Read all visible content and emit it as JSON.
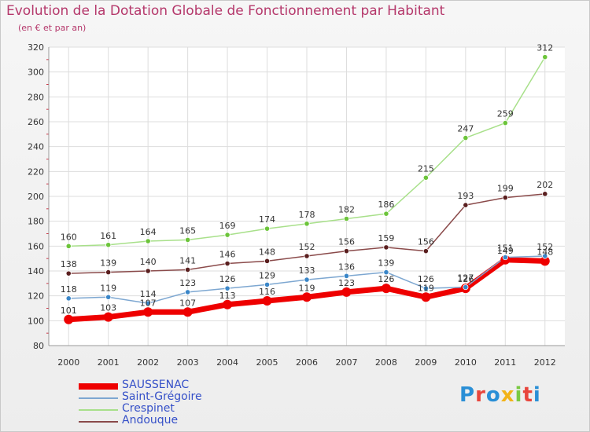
{
  "header": {
    "title": "Evolution de la Dotation Globale de Fonctionnement par Habitant",
    "subtitle": "(en € et par an)"
  },
  "logo": {
    "text": "Proxiti",
    "colors": [
      "#2a8fd6",
      "#e8453c",
      "#2a8fd6",
      "#f2b318",
      "#7ac943",
      "#e8453c",
      "#2a8fd6"
    ]
  },
  "chart_data": {
    "type": "line",
    "title": "Evolution de la Dotation Globale de Fonctionnement par Habitant",
    "subtitle": "(en € et par an)",
    "x": [
      "2000",
      "2001",
      "2002",
      "2003",
      "2004",
      "2005",
      "2006",
      "2007",
      "2008",
      "2009",
      "2010",
      "2011",
      "2012"
    ],
    "ylim": [
      80,
      320
    ],
    "yticks": [
      80,
      100,
      120,
      140,
      160,
      180,
      200,
      220,
      240,
      260,
      280,
      300,
      320
    ],
    "grid": true,
    "legend_position": "bottom-left",
    "series": [
      {
        "name": "SAUSSENAC",
        "color": "#ee0000",
        "marker": "#ee0000",
        "width": 7,
        "values": [
          101,
          103,
          107,
          107,
          113,
          116,
          119,
          123,
          126,
          119,
          126,
          149,
          148
        ]
      },
      {
        "name": "Saint-Grégoire",
        "color": "#7da7d1",
        "marker": "#3a86c8",
        "width": 1.5,
        "values": [
          118,
          119,
          114,
          123,
          126,
          129,
          133,
          136,
          139,
          126,
          127,
          151,
          152
        ]
      },
      {
        "name": "Crespinet",
        "color": "#a8e08a",
        "marker": "#6cc43a",
        "width": 1.5,
        "values": [
          160,
          161,
          164,
          165,
          169,
          174,
          178,
          182,
          186,
          215,
          247,
          259,
          312
        ]
      },
      {
        "name": "Andouque",
        "color": "#8a4a4a",
        "marker": "#5a1f1f",
        "width": 1.5,
        "values": [
          138,
          139,
          140,
          141,
          146,
          148,
          152,
          156,
          159,
          156,
          193,
          199,
          202
        ]
      }
    ]
  }
}
